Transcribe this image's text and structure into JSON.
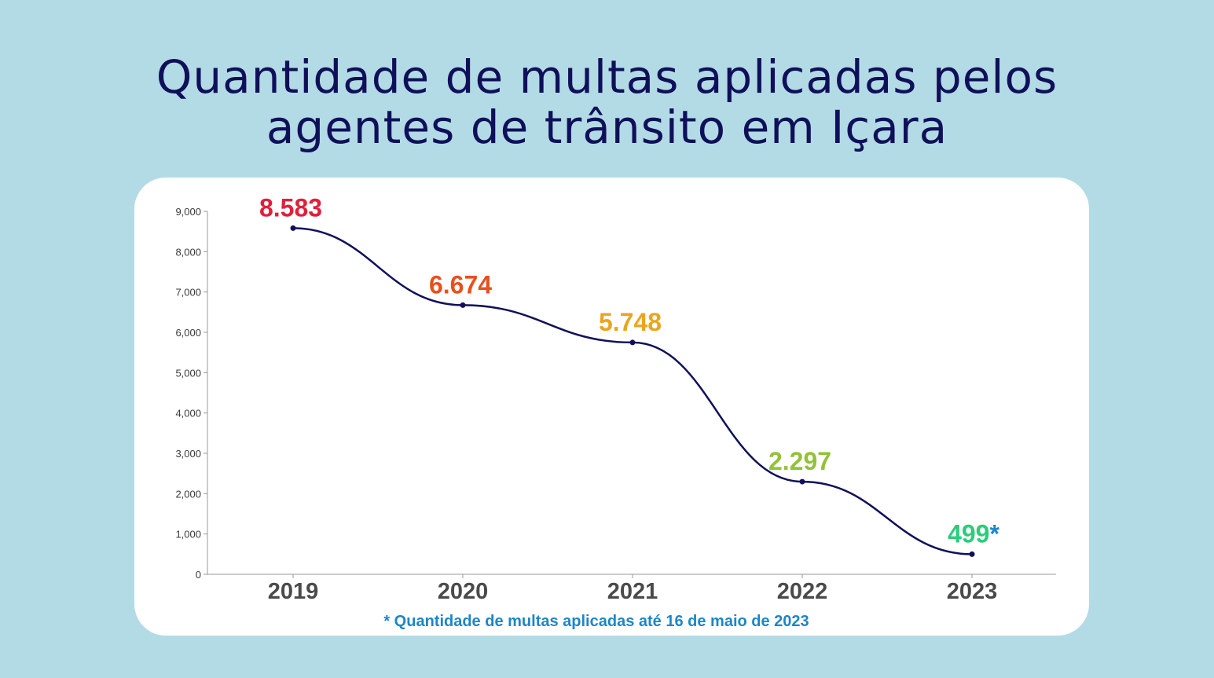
{
  "title_lines": [
    "Quantidade de multas aplicadas pelos",
    "agentes de trânsito em Içara"
  ],
  "chart_data": {
    "type": "line",
    "title": "Quantidade de multas aplicadas pelos agentes de trânsito em Içara",
    "categories": [
      "2019",
      "2020",
      "2021",
      "2022",
      "2023"
    ],
    "values": [
      8583,
      6674,
      5748,
      2297,
      499
    ],
    "data_labels": [
      "8.583",
      "6.674",
      "5.748",
      "2.297",
      "499"
    ],
    "label_colors": [
      "#e0203a",
      "#e8501c",
      "#eca420",
      "#92c23a",
      "#2ecb7a"
    ],
    "last_label_suffix": "*",
    "suffix_color": "#1d86c8",
    "ylim": [
      0,
      9000
    ],
    "yticks": [
      "0",
      "1,000",
      "2,000",
      "3,000",
      "4,000",
      "5,000",
      "6,000",
      "7,000",
      "8,000",
      "9,000"
    ],
    "line_color": "#10105a",
    "grid": false,
    "footnote": "* Quantidade de multas aplicadas até 16 de maio de 2023"
  }
}
